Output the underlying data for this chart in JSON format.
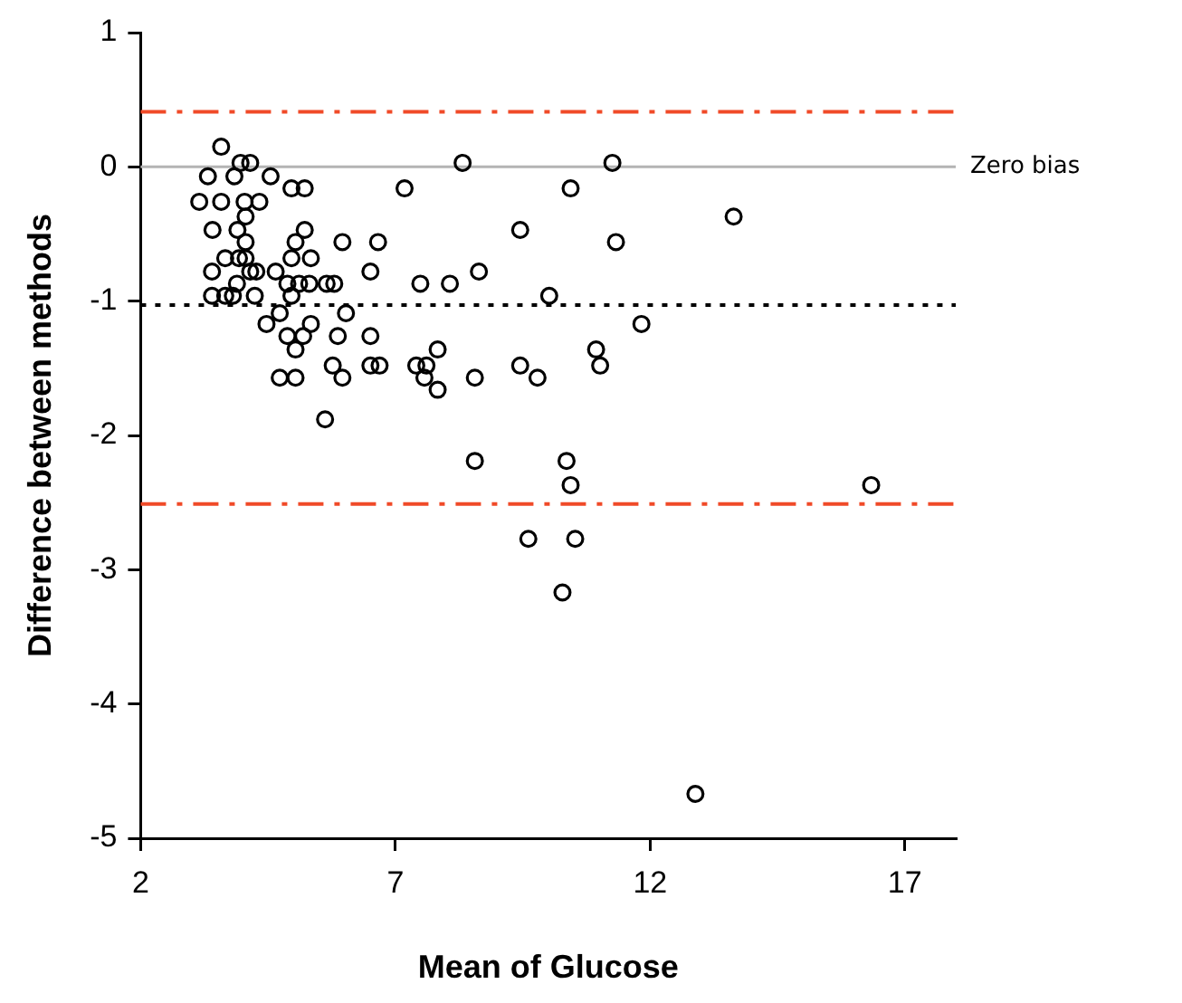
{
  "chart_data": {
    "type": "scatter",
    "xlabel": "Mean of Glucose",
    "ylabel": "Difference between methods",
    "xlim": [
      2,
      18
    ],
    "xticks": [
      2,
      7,
      12,
      17
    ],
    "ylim": [
      -5,
      1
    ],
    "yticks": [
      -5,
      -4,
      -3,
      -2,
      -1,
      0,
      1
    ],
    "grid": false,
    "legend": false,
    "marker": "circle",
    "series": [
      {
        "color": "#000000",
        "x": [
          3.58,
          3.32,
          3.15,
          3.58,
          3.41,
          3.4,
          3.66,
          3.4,
          3.66,
          3.81,
          3.96,
          4.15,
          3.84,
          4.04,
          4.33,
          4.06,
          3.9,
          4.06,
          3.93,
          4.06,
          4.15,
          4.27,
          3.89,
          4.24,
          4.55,
          4.96,
          5.22,
          5.22,
          5.04,
          4.96,
          5.34,
          4.65,
          4.88,
          5.11,
          5.31,
          5.65,
          5.8,
          4.96,
          4.47,
          4.73,
          5.34,
          4.88,
          5.19,
          5.04,
          5.87,
          5.77,
          4.73,
          5.04,
          5.96,
          5.62,
          5.96,
          6.03,
          6.51,
          6.66,
          6.51,
          6.51,
          6.69,
          7.18,
          7.49,
          8.07,
          7.41,
          7.61,
          7.57,
          7.83,
          7.83,
          8.32,
          8.64,
          8.56,
          8.56,
          9.45,
          9.45,
          9.79,
          10.02,
          9.61,
          10.28,
          10.36,
          10.44,
          10.53,
          10.44,
          10.94,
          11.02,
          11.26,
          11.33,
          11.83,
          12.89,
          13.64,
          16.34
        ],
        "values": [
          0.15,
          -0.07,
          -0.26,
          -0.26,
          -0.47,
          -0.78,
          -0.68,
          -0.96,
          -0.96,
          -0.96,
          0.03,
          0.03,
          -0.07,
          -0.26,
          -0.26,
          -0.37,
          -0.47,
          -0.56,
          -0.68,
          -0.68,
          -0.78,
          -0.78,
          -0.87,
          -0.96,
          -0.07,
          -0.16,
          -0.16,
          -0.47,
          -0.56,
          -0.68,
          -0.68,
          -0.78,
          -0.87,
          -0.87,
          -0.87,
          -0.87,
          -0.87,
          -0.96,
          -1.17,
          -1.09,
          -1.17,
          -1.26,
          -1.26,
          -1.36,
          -1.26,
          -1.48,
          -1.57,
          -1.57,
          -1.57,
          -1.88,
          -0.56,
          -1.09,
          -0.78,
          -0.56,
          -1.26,
          -1.48,
          -1.48,
          -0.16,
          -0.87,
          -0.87,
          -1.48,
          -1.48,
          -1.57,
          -1.36,
          -1.66,
          0.03,
          -0.78,
          -1.57,
          -2.19,
          -0.47,
          -1.48,
          -1.57,
          -0.96,
          -2.77,
          -3.17,
          -2.19,
          -2.37,
          -2.77,
          -0.16,
          -1.36,
          -1.48,
          0.03,
          -0.56,
          -1.17,
          -4.67,
          -0.37,
          -2.37
        ]
      }
    ],
    "ref_lines": [
      {
        "axis": "y",
        "value": 0,
        "label": "Zero bias",
        "color": "#b4b4b4",
        "line_style": "solid"
      },
      {
        "axis": "y",
        "value": 0.41,
        "color": "#f04a28",
        "line_style": "dashed"
      },
      {
        "axis": "y",
        "value": -1.03,
        "color": "#000000",
        "line_style": "dotted"
      },
      {
        "axis": "y",
        "value": -2.51,
        "color": "#f04a28",
        "line_style": "dashed"
      }
    ]
  }
}
